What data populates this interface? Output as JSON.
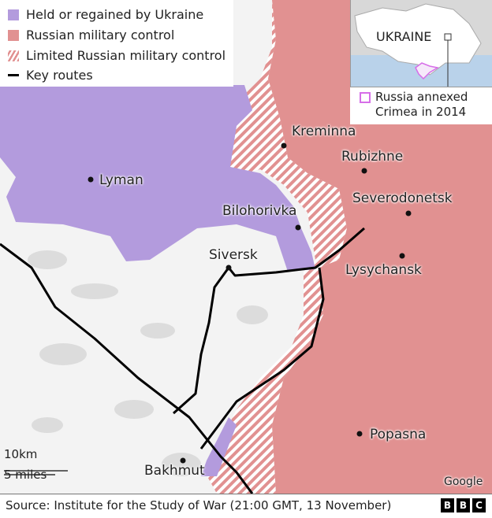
{
  "legend": {
    "ukraine": "Held or regained by Ukraine",
    "russian": "Russian military control",
    "limited": "Limited Russian military control",
    "routes": "Key routes"
  },
  "colors": {
    "ukraine": "#b39bdd",
    "russian": "#e19191",
    "limited_stripe": "#e19191",
    "land": "#f3f3f3",
    "route": "#000000",
    "crimea": "#d66ee8"
  },
  "inset": {
    "country": "UKRAINE",
    "caption": "Russia annexed Crimea in 2014"
  },
  "places": {
    "kreminna": "Kreminna",
    "rubizhne": "Rubizhne",
    "severodonetsk": "Severodonetsk",
    "bilohorivka": "Bilohorivka",
    "siversk": "Siversk",
    "lysychansk": "Lysychansk",
    "lyman": "Lyman",
    "popasna": "Popasna",
    "bakhmut": "Bakhmut"
  },
  "scale": {
    "km": "10km",
    "miles": "5 miles"
  },
  "attribution": "Google",
  "source": "Source: Institute for the Study of War (21:00 GMT, 13 November)",
  "logo": [
    "B",
    "B",
    "C"
  ]
}
